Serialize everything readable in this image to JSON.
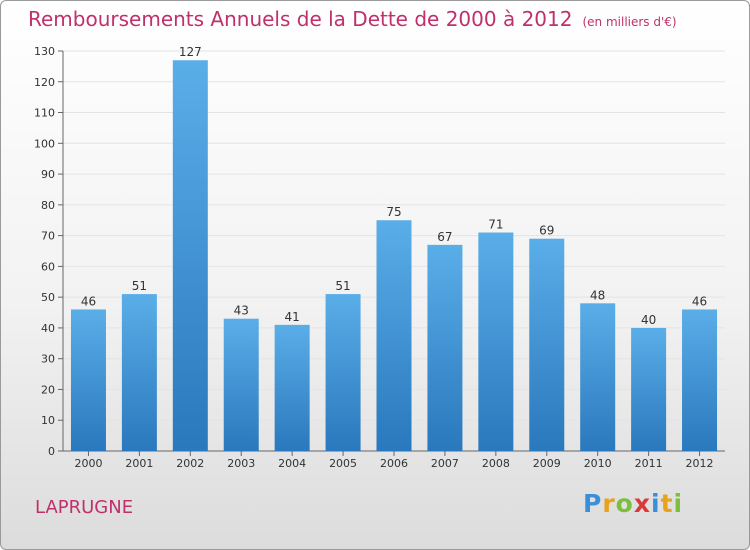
{
  "title": "Remboursements Annuels de la Dette de 2000 à 2012",
  "unit": "(en milliers d'€)",
  "commune": "LAPRUGNE",
  "logo": "Proxiti",
  "colors": {
    "title": "#c0306b",
    "bar_top": "#5aaee8",
    "bar_bottom": "#2a78bd"
  },
  "chart_data": {
    "type": "bar",
    "categories": [
      "2000",
      "2001",
      "2002",
      "2003",
      "2004",
      "2005",
      "2006",
      "2007",
      "2008",
      "2009",
      "2010",
      "2011",
      "2012"
    ],
    "values": [
      46,
      51,
      127,
      43,
      41,
      51,
      75,
      67,
      71,
      69,
      48,
      40,
      46
    ],
    "ylim": [
      0,
      130
    ],
    "yticks": [
      0,
      10,
      20,
      30,
      40,
      50,
      60,
      70,
      80,
      90,
      100,
      110,
      120,
      130
    ],
    "grid": true,
    "title": "Remboursements Annuels de la Dette de 2000 à 2012",
    "xlabel": "",
    "ylabel": ""
  }
}
